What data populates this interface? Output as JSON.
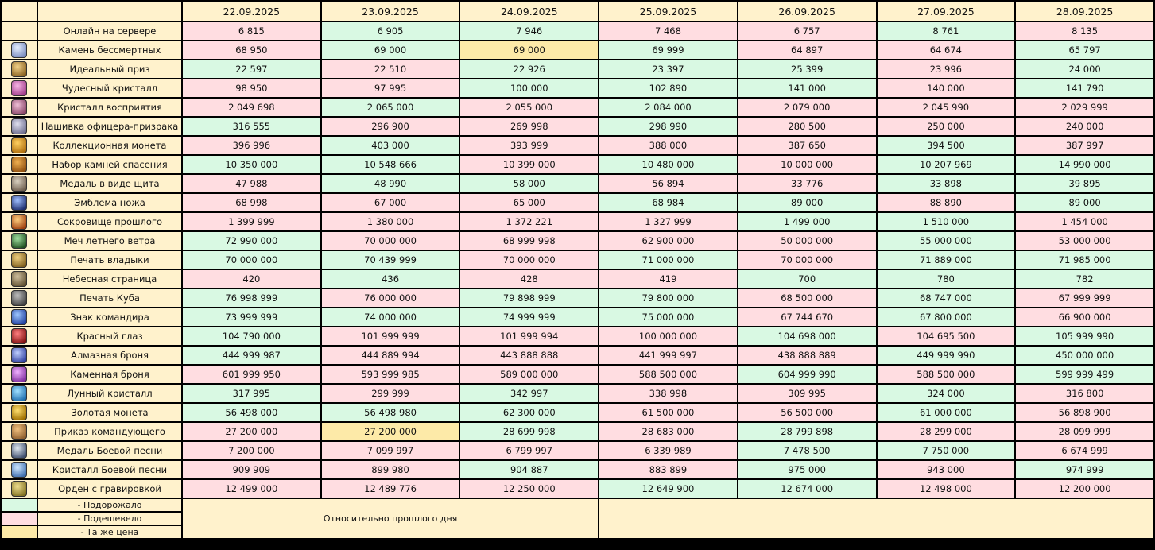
{
  "table": {
    "dates": [
      "22.09.2025",
      "23.09.2025",
      "24.09.2025",
      "25.09.2025",
      "26.09.2025",
      "27.09.2025",
      "28.09.2025"
    ],
    "header_color": "#fff2cc",
    "rows": [
      {
        "name": "Онлайн на сервере",
        "icon": false,
        "values": [
          "6 815",
          "6 905",
          "7 946",
          "7 468",
          "6 757",
          "8 761",
          "8 135"
        ],
        "colors": [
          "#ffdde1",
          "#d9f9e3",
          "#d9f9e3",
          "#ffdde1",
          "#ffdde1",
          "#d9f9e3",
          "#ffdde1"
        ]
      },
      {
        "name": "Камень бессмертных",
        "icon": true,
        "values": [
          "68 950",
          "69 000",
          "69 000",
          "69 999",
          "64 897",
          "64 674",
          "65 797"
        ],
        "colors": [
          "#ffdde1",
          "#d9f9e3",
          "#fdeaa8",
          "#d9f9e3",
          "#ffdde1",
          "#ffdde1",
          "#d9f9e3"
        ]
      },
      {
        "name": "Идеальный приз",
        "icon": true,
        "values": [
          "22 597",
          "22 510",
          "22 926",
          "23 397",
          "25 399",
          "23 996",
          "24 000"
        ],
        "colors": [
          "#d9f9e3",
          "#ffdde1",
          "#d9f9e3",
          "#d9f9e3",
          "#d9f9e3",
          "#ffdde1",
          "#d9f9e3"
        ]
      },
      {
        "name": "Чудесный кристалл",
        "icon": true,
        "values": [
          "98 950",
          "97 995",
          "100 000",
          "102 890",
          "141 000",
          "140 000",
          "141 790"
        ],
        "colors": [
          "#ffdde1",
          "#ffdde1",
          "#d9f9e3",
          "#d9f9e3",
          "#d9f9e3",
          "#ffdde1",
          "#d9f9e3"
        ]
      },
      {
        "name": "Кристалл восприятия",
        "icon": true,
        "values": [
          "2 049 698",
          "2 065 000",
          "2 055 000",
          "2 084 000",
          "2 079 000",
          "2 045 990",
          "2 029 999"
        ],
        "colors": [
          "#ffdde1",
          "#d9f9e3",
          "#ffdde1",
          "#d9f9e3",
          "#ffdde1",
          "#ffdde1",
          "#ffdde1"
        ]
      },
      {
        "name": "Нашивка офицера-призрака",
        "icon": true,
        "values": [
          "316 555",
          "296 900",
          "269 998",
          "298 990",
          "280 500",
          "250 000",
          "240 000"
        ],
        "colors": [
          "#d9f9e3",
          "#ffdde1",
          "#ffdde1",
          "#d9f9e3",
          "#ffdde1",
          "#ffdde1",
          "#ffdde1"
        ]
      },
      {
        "name": "Коллекционная монета",
        "icon": true,
        "values": [
          "396 996",
          "403 000",
          "393 999",
          "388 000",
          "387 650",
          "394 500",
          "387 997"
        ],
        "colors": [
          "#ffdde1",
          "#d9f9e3",
          "#ffdde1",
          "#ffdde1",
          "#ffdde1",
          "#d9f9e3",
          "#ffdde1"
        ]
      },
      {
        "name": "Набор камней спасения",
        "icon": true,
        "values": [
          "10 350 000",
          "10 548 666",
          "10 399 000",
          "10 480 000",
          "10 000 000",
          "10 207 969",
          "14 990 000"
        ],
        "colors": [
          "#d9f9e3",
          "#d9f9e3",
          "#ffdde1",
          "#d9f9e3",
          "#ffdde1",
          "#d9f9e3",
          "#d9f9e3"
        ]
      },
      {
        "name": "Медаль в виде щита",
        "icon": true,
        "values": [
          "47 988",
          "48 990",
          "58 000",
          "56 894",
          "33 776",
          "33 898",
          "39 895"
        ],
        "colors": [
          "#ffdde1",
          "#d9f9e3",
          "#d9f9e3",
          "#ffdde1",
          "#ffdde1",
          "#d9f9e3",
          "#d9f9e3"
        ]
      },
      {
        "name": "Эмблема ножа",
        "icon": true,
        "values": [
          "68 998",
          "67 000",
          "65 000",
          "68 984",
          "89 000",
          "88 890",
          "89 000"
        ],
        "colors": [
          "#ffdde1",
          "#ffdde1",
          "#ffdde1",
          "#d9f9e3",
          "#d9f9e3",
          "#ffdde1",
          "#d9f9e3"
        ]
      },
      {
        "name": "Сокровище прошлого",
        "icon": true,
        "values": [
          "1 399 999",
          "1 380 000",
          "1 372 221",
          "1 327 999",
          "1 499 000",
          "1 510 000",
          "1 454 000"
        ],
        "colors": [
          "#ffdde1",
          "#ffdde1",
          "#ffdde1",
          "#ffdde1",
          "#d9f9e3",
          "#d9f9e3",
          "#ffdde1"
        ]
      },
      {
        "name": "Меч летнего ветра",
        "icon": true,
        "values": [
          "72 990 000",
          "70 000 000",
          "68 999 998",
          "62 900 000",
          "50 000 000",
          "55 000 000",
          "53 000 000"
        ],
        "colors": [
          "#d9f9e3",
          "#ffdde1",
          "#ffdde1",
          "#ffdde1",
          "#ffdde1",
          "#d9f9e3",
          "#ffdde1"
        ]
      },
      {
        "name": "Печать владыки",
        "icon": true,
        "values": [
          "70 000 000",
          "70 439 999",
          "70 000 000",
          "71 000 000",
          "70 000 000",
          "71 889 000",
          "71 985 000"
        ],
        "colors": [
          "#d9f9e3",
          "#d9f9e3",
          "#ffdde1",
          "#d9f9e3",
          "#ffdde1",
          "#d9f9e3",
          "#d9f9e3"
        ]
      },
      {
        "name": "Небесная страница",
        "icon": true,
        "values": [
          "420",
          "436",
          "428",
          "419",
          "700",
          "780",
          "782"
        ],
        "colors": [
          "#ffdde1",
          "#d9f9e3",
          "#ffdde1",
          "#ffdde1",
          "#d9f9e3",
          "#d9f9e3",
          "#d9f9e3"
        ]
      },
      {
        "name": "Печать Куба",
        "icon": true,
        "values": [
          "76 998 999",
          "76 000 000",
          "79 898 999",
          "79 800 000",
          "68 500 000",
          "68 747 000",
          "67 999 999"
        ],
        "colors": [
          "#d9f9e3",
          "#ffdde1",
          "#d9f9e3",
          "#d9f9e3",
          "#ffdde1",
          "#d9f9e3",
          "#ffdde1"
        ]
      },
      {
        "name": "Знак командира",
        "icon": true,
        "values": [
          "73 999 999",
          "74 000 000",
          "74 999 999",
          "75 000 000",
          "67 744 670",
          "67 800 000",
          "66 900 000"
        ],
        "colors": [
          "#d9f9e3",
          "#d9f9e3",
          "#d9f9e3",
          "#d9f9e3",
          "#ffdde1",
          "#d9f9e3",
          "#ffdde1"
        ]
      },
      {
        "name": "Красный глаз",
        "icon": true,
        "values": [
          "104 790 000",
          "101 999 999",
          "101 999 994",
          "100 000 000",
          "104 698 000",
          "104 695 500",
          "105 999 990"
        ],
        "colors": [
          "#d9f9e3",
          "#ffdde1",
          "#ffdde1",
          "#ffdde1",
          "#d9f9e3",
          "#ffdde1",
          "#d9f9e3"
        ]
      },
      {
        "name": "Алмазная броня",
        "icon": true,
        "values": [
          "444 999 987",
          "444 889 994",
          "443 888 888",
          "441 999 997",
          "438 888 889",
          "449 999 990",
          "450 000 000"
        ],
        "colors": [
          "#d9f9e3",
          "#ffdde1",
          "#ffdde1",
          "#ffdde1",
          "#ffdde1",
          "#d9f9e3",
          "#d9f9e3"
        ]
      },
      {
        "name": "Каменная броня",
        "icon": true,
        "values": [
          "601 999 950",
          "593 999 985",
          "589 000 000",
          "588 500 000",
          "604 999 990",
          "588 500 000",
          "599 999 499"
        ],
        "colors": [
          "#ffdde1",
          "#ffdde1",
          "#ffdde1",
          "#ffdde1",
          "#d9f9e3",
          "#ffdde1",
          "#d9f9e3"
        ]
      },
      {
        "name": "Лунный кристалл",
        "icon": true,
        "values": [
          "317 995",
          "299 999",
          "342 997",
          "338 998",
          "309 995",
          "324 000",
          "316 800"
        ],
        "colors": [
          "#d9f9e3",
          "#ffdde1",
          "#d9f9e3",
          "#ffdde1",
          "#ffdde1",
          "#d9f9e3",
          "#ffdde1"
        ]
      },
      {
        "name": "Золотая монета",
        "icon": true,
        "values": [
          "56 498 000",
          "56 498 980",
          "62 300 000",
          "61 500 000",
          "56 500 000",
          "61 000 000",
          "56 898 900"
        ],
        "colors": [
          "#d9f9e3",
          "#d9f9e3",
          "#d9f9e3",
          "#ffdde1",
          "#ffdde1",
          "#d9f9e3",
          "#ffdde1"
        ]
      },
      {
        "name": "Приказ командующего",
        "icon": true,
        "values": [
          "27 200 000",
          "27 200 000",
          "28 699 998",
          "28 683 000",
          "28 799 898",
          "28 299 000",
          "28 099 999"
        ],
        "colors": [
          "#ffdde1",
          "#fdeaa8",
          "#d9f9e3",
          "#ffdde1",
          "#d9f9e3",
          "#ffdde1",
          "#ffdde1"
        ]
      },
      {
        "name": "Медаль Боевой песни",
        "icon": true,
        "values": [
          "7 200 000",
          "7 099 997",
          "6 799 997",
          "6 339 989",
          "7 478 500",
          "7 750 000",
          "6 674 999"
        ],
        "colors": [
          "#ffdde1",
          "#ffdde1",
          "#ffdde1",
          "#ffdde1",
          "#d9f9e3",
          "#d9f9e3",
          "#ffdde1"
        ]
      },
      {
        "name": "Кристалл Боевой песни",
        "icon": true,
        "values": [
          "909 909",
          "899 980",
          "904 887",
          "883 899",
          "975 000",
          "943 000",
          "974 999"
        ],
        "colors": [
          "#ffdde1",
          "#ffdde1",
          "#d9f9e3",
          "#ffdde1",
          "#d9f9e3",
          "#ffdde1",
          "#d9f9e3"
        ]
      },
      {
        "name": "Орден с гравировкой",
        "icon": true,
        "values": [
          "12 499 000",
          "12 489 776",
          "12 250 000",
          "12 649 900",
          "12 674 000",
          "12 498 000",
          "12 200 000"
        ],
        "colors": [
          "#ffdde1",
          "#ffdde1",
          "#ffdde1",
          "#d9f9e3",
          "#d9f9e3",
          "#ffdde1",
          "#ffdde1"
        ]
      }
    ]
  },
  "legend": {
    "items": [
      {
        "label": "- Подорожало",
        "color": "#d9f9e3"
      },
      {
        "label": "- Подешевело",
        "color": "#ffdde1"
      },
      {
        "label": "- Та же цена",
        "color": "#fdeaa8"
      }
    ],
    "note": "Относительно прошлого дня"
  }
}
